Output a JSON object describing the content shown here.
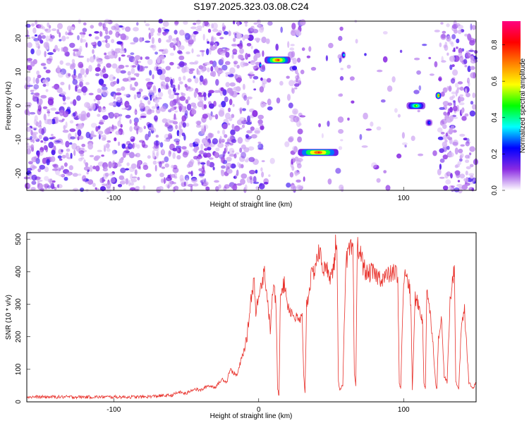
{
  "figure": {
    "title": "S197.2025.323.03.08.C24"
  },
  "chart_data": [
    {
      "type": "heatmap",
      "name": "spectrogram",
      "xlabel": "Height of straight line (km)",
      "ylabel": "Frequency (Hz)",
      "xlim": [
        -160,
        150
      ],
      "ylim": [
        -25,
        25
      ],
      "x_ticks": [
        -100,
        0,
        100
      ],
      "y_ticks": [
        -20,
        -10,
        0,
        10,
        20
      ],
      "colorbar": {
        "label": "Normalized spectral amplitude",
        "range": [
          0,
          0.93
        ],
        "ticks": [
          "0.0",
          "0.2",
          "0.4",
          "0.6",
          "0.8"
        ],
        "colors": [
          "#ffffff",
          "#8a2be2",
          "#0000ff",
          "#00ffff",
          "#00ff00",
          "#ffff00",
          "#ff8000",
          "#ff0000",
          "#ff0080"
        ]
      },
      "empty_regions_x": [
        [
          4,
          22
        ],
        [
          29,
          56
        ],
        [
          58,
          100
        ],
        [
          100,
          125
        ]
      ],
      "strong_features": [
        {
          "x": [
            4,
            22
          ],
          "freq": 13.5,
          "amp": 0.9
        },
        {
          "x": [
            27,
            55
          ],
          "freq": -13.8,
          "amp": 0.92
        },
        {
          "x": [
            57,
            60
          ],
          "freq": 15,
          "amp": 0.4
        },
        {
          "x": [
            102,
            115
          ],
          "freq": 0,
          "amp": 0.6
        },
        {
          "x": [
            115,
            120
          ],
          "freq": -5,
          "amp": 0.3
        },
        {
          "x": [
            122,
            126
          ],
          "freq": 3,
          "amp": 0.8
        },
        {
          "x": [
            0,
            2
          ],
          "freq": 12,
          "amp": 0.35
        }
      ]
    },
    {
      "type": "line",
      "name": "snr",
      "xlabel": "Height of straight line (km)",
      "ylabel": "SNR (10 * v/v)",
      "xlim": [
        -160,
        150
      ],
      "ylim": [
        0,
        520
      ],
      "x_ticks": [
        -100,
        0,
        100
      ],
      "y_ticks": [
        0,
        100,
        200,
        300,
        400,
        500
      ],
      "line_color": "#e8302a",
      "series": [
        {
          "name": "SNR",
          "x": [
            -160,
            -140,
            -120,
            -100,
            -90,
            -80,
            -70,
            -60,
            -55,
            -50,
            -45,
            -40,
            -35,
            -30,
            -25,
            -22,
            -20,
            -15,
            -12,
            -10,
            -8,
            -5,
            -3,
            -2,
            0,
            2,
            4,
            6,
            8,
            10,
            12,
            13,
            14,
            15,
            18,
            20,
            22,
            25,
            28,
            30,
            31,
            32,
            33,
            34,
            36,
            38,
            40,
            42,
            44,
            46,
            48,
            50,
            52,
            53,
            54,
            55,
            56,
            58,
            60,
            62,
            65,
            66,
            67,
            68,
            70,
            72,
            75,
            78,
            80,
            85,
            90,
            95,
            96,
            97,
            98,
            100,
            102,
            104,
            105,
            106,
            108,
            110,
            112,
            113,
            114,
            115,
            116,
            118,
            120,
            122,
            123,
            124,
            126,
            128,
            130,
            132,
            134,
            135,
            136,
            138,
            140,
            142,
            145,
            148,
            150
          ],
          "values": [
            15,
            15,
            15,
            15,
            15,
            15,
            18,
            20,
            30,
            25,
            40,
            35,
            50,
            45,
            70,
            60,
            100,
            80,
            130,
            160,
            200,
            330,
            380,
            260,
            340,
            370,
            400,
            320,
            220,
            360,
            300,
            40,
            20,
            350,
            360,
            300,
            280,
            260,
            250,
            260,
            80,
            30,
            300,
            320,
            380,
            400,
            440,
            460,
            420,
            400,
            410,
            380,
            420,
            480,
            450,
            60,
            40,
            50,
            420,
            460,
            470,
            80,
            50,
            480,
            460,
            420,
            390,
            400,
            390,
            380,
            390,
            400,
            360,
            60,
            40,
            380,
            390,
            350,
            300,
            40,
            320,
            300,
            270,
            250,
            60,
            40,
            350,
            280,
            200,
            60,
            40,
            200,
            260,
            80,
            60,
            300,
            380,
            420,
            60,
            40,
            250,
            280,
            60,
            40,
            60
          ]
        }
      ]
    }
  ]
}
